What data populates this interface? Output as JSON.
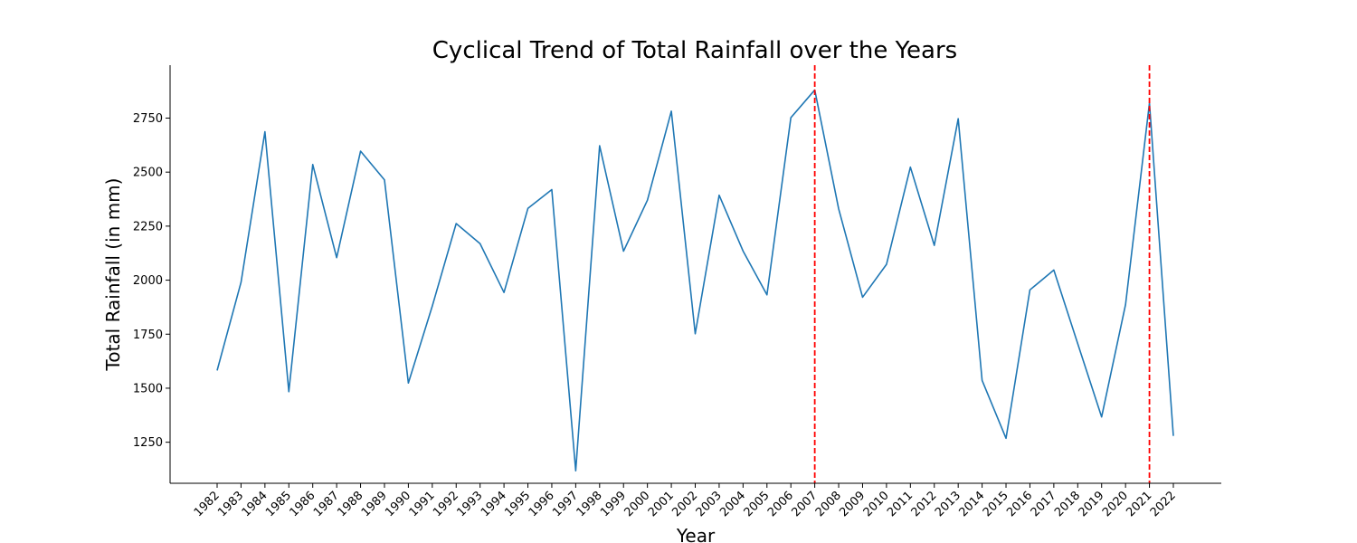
{
  "chart_data": {
    "type": "line",
    "title": "Cyclical Trend of Total Rainfall over the Years",
    "xlabel": "Year",
    "ylabel": "Total Rainfall (in mm)",
    "x": [
      "1982",
      "1983",
      "1984",
      "1985",
      "1986",
      "1987",
      "1988",
      "1989",
      "1990",
      "1991",
      "1992",
      "1993",
      "1994",
      "1995",
      "1996",
      "1997",
      "1998",
      "1999",
      "2000",
      "2001",
      "2002",
      "2003",
      "2004",
      "2005",
      "2006",
      "2007",
      "2008",
      "2009",
      "2010",
      "2011",
      "2012",
      "2013",
      "2014",
      "2015",
      "2016",
      "2017",
      "2018",
      "2019",
      "2020",
      "2021",
      "2022"
    ],
    "series": [
      {
        "values": [
          1582,
          1990,
          2687,
          1484,
          2535,
          2104,
          2597,
          2464,
          1524,
          1880,
          2262,
          2169,
          1943,
          2332,
          2419,
          1118,
          2622,
          2134,
          2370,
          2782,
          1752,
          2393,
          2135,
          1932,
          2752,
          2880,
          2330,
          1921,
          2073,
          2523,
          2161,
          2747,
          1536,
          1268,
          1955,
          2047,
          1706,
          1367,
          1887,
          2820,
          1279
        ],
        "color": "#1f77b4"
      }
    ],
    "yticks": [
      1250,
      1500,
      1750,
      2000,
      2250,
      2500,
      2750
    ],
    "ylim": [
      1060,
      2995
    ],
    "vlines": [
      {
        "x": "2007",
        "color": "#ff0000",
        "style": "dashed"
      },
      {
        "x": "2021",
        "color": "#ff0000",
        "style": "dashed"
      }
    ],
    "grid": false
  }
}
